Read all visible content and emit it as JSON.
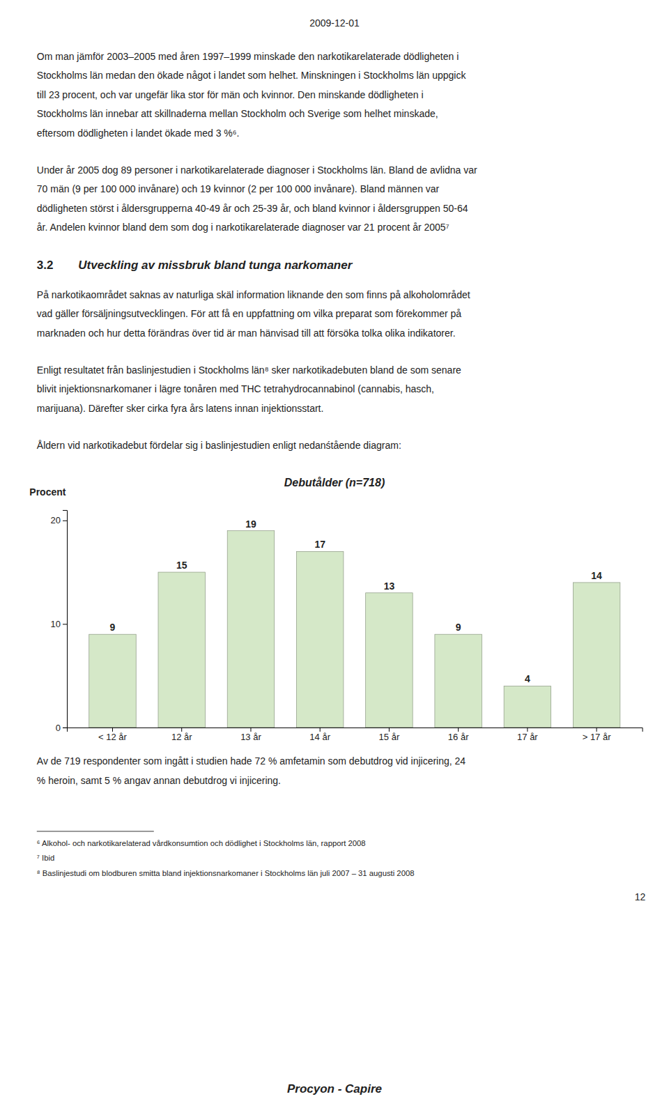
{
  "header": "2009-12-01",
  "intro_paragraphs": [
    [
      "Om man jämför 2003–2005 med åren 1997–1999 minskade den narkotikarelaterade dödligheten i",
      "Stockholms län medan den ökade något i landet som helhet. Minskningen i Stockholms län uppgick",
      "till 23 procent, och var ungefär lika stor för män och kvinnor. Den minskande dödligheten i",
      "Stockholms län innebar att skillnaderna mellan Stockholm och Sverige som helhet minskade,",
      "eftersom dödligheten i landet ökade med 3 %⁶."
    ],
    [
      "Under år 2005 dog 89 personer i narkotikarelaterade diagnoser i Stockholms län. Bland de avlidna var",
      "70 män (9 per 100 000 invånare) och 19 kvinnor (2 per 100 000 invånare). Bland männen var",
      "dödligheten störst i åldersgrupperna 40-49 år och 25-39 år, och bland kvinnor i åldersgruppen 50-64",
      "år. Andelen kvinnor bland dem som dog i narkotikarelaterade diagnoser var 21 procent år 2005⁷"
    ]
  ],
  "section_number": "3.2",
  "section_title": "Utveckling av missbruk bland tunga narkomaner",
  "section_paragraphs": [
    [
      "På narkotikaområdet saknas av naturliga skäl information liknande den som finns på alkoholområdet",
      "vad gäller försäljningsutvecklingen. För att få en uppfattning om vilka preparat som förekommer på",
      "marknaden och hur detta förändras över tid är man hänvisad till att försöka tolka olika indikatorer."
    ],
    [
      "Enligt resultatet från baslinjestudien i Stockholms län⁸ sker narkotikadebuten bland de som senare",
      "blivit injektionsnarkomaner i lägre tonåren med THC tetrahydrocannabinol (cannabis, hasch,",
      "marijuana). Därefter sker cirka fyra års latens innan injektionsstart."
    ],
    [
      "Åldern vid narkotikadebut fördelar sig i baslinjestudien enligt nedanśtående diagram:"
    ]
  ],
  "chart_data": {
    "type": "bar",
    "title": "Debutålder (n=718)",
    "ylabel": "Procent",
    "categories": [
      "< 12 år",
      "12 år",
      "13 år",
      "14 år",
      "15 år",
      "16 år",
      "17 år",
      "> 17 år"
    ],
    "values": [
      9,
      15,
      19,
      17,
      13,
      9,
      4,
      14
    ],
    "color": "#d5e8c8",
    "ylim": [
      0,
      21
    ],
    "yticks": [
      0,
      10,
      20
    ],
    "grid": false,
    "data_labels": true
  },
  "after_chart_paragraphs": [
    [
      "Av de 719 respondenter som ingått i studien hade 72 % amfetamin som debutdrog vid injicering, 24",
      "% heroin, samt 5 % angav annan debutdrog vi injicering."
    ]
  ],
  "footnotes": [
    "⁶ Alkohol- och narkotikarelaterad vårdkonsumtion och dödlighet i Stockholms län, rapport 2008",
    "⁷ Ibid",
    "⁸ Baslinjestudi om blodburen smitta bland injektionsnarkomaner i Stockholms län juli 2007 – 31 augusti 2008"
  ],
  "page_number": "12",
  "footer": "Procyon - Capire"
}
